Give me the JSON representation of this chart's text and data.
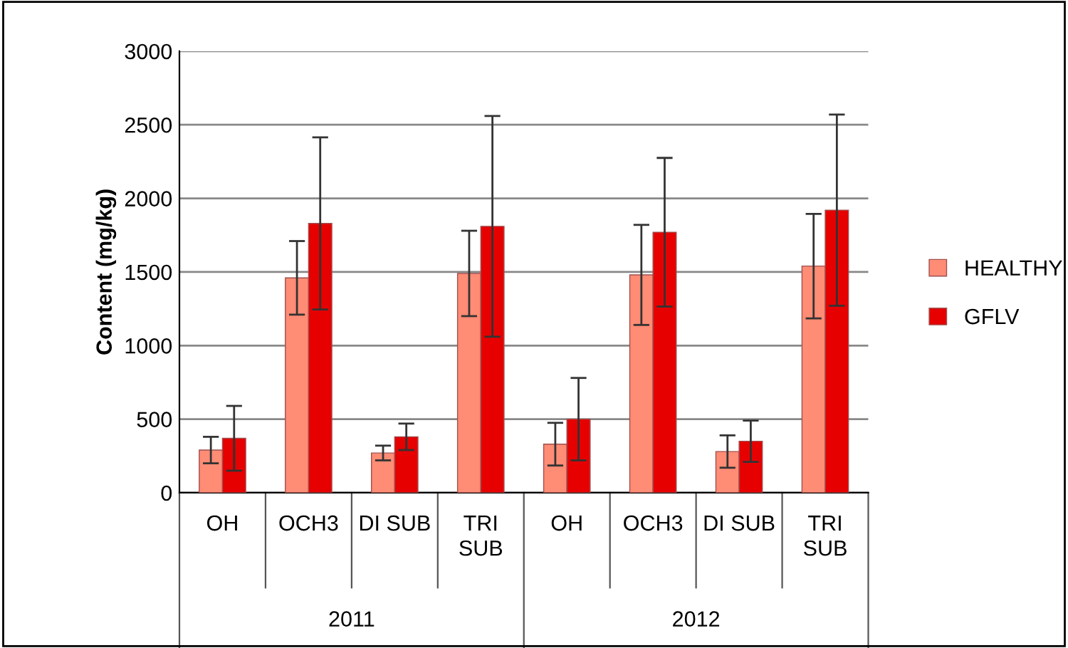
{
  "chart_data": {
    "type": "bar",
    "ylabel": "Content (mg/kg)",
    "categories": [
      "OH",
      "OCH3",
      "DI SUB",
      "TRI SUB",
      "OH",
      "OCH3",
      "DI SUB",
      "TRI SUB"
    ],
    "annotations": [
      "2011",
      "2012"
    ],
    "series": [
      {
        "name": "HEALTHY",
        "color": "#ff8c75",
        "values": [
          290,
          1460,
          270,
          1490,
          330,
          1480,
          280,
          1540
        ],
        "errors": [
          90,
          250,
          50,
          290,
          145,
          340,
          110,
          355
        ]
      },
      {
        "name": "GFLV",
        "color": "#e60000",
        "values": [
          370,
          1830,
          380,
          1810,
          500,
          1770,
          350,
          1920
        ],
        "errors": [
          220,
          585,
          90,
          750,
          280,
          505,
          140,
          650
        ]
      }
    ],
    "ylim": [
      0,
      3000
    ],
    "yticks": [
      0,
      500,
      1000,
      1500,
      2000,
      2500,
      3000
    ],
    "grid": "y",
    "legend": "right"
  }
}
